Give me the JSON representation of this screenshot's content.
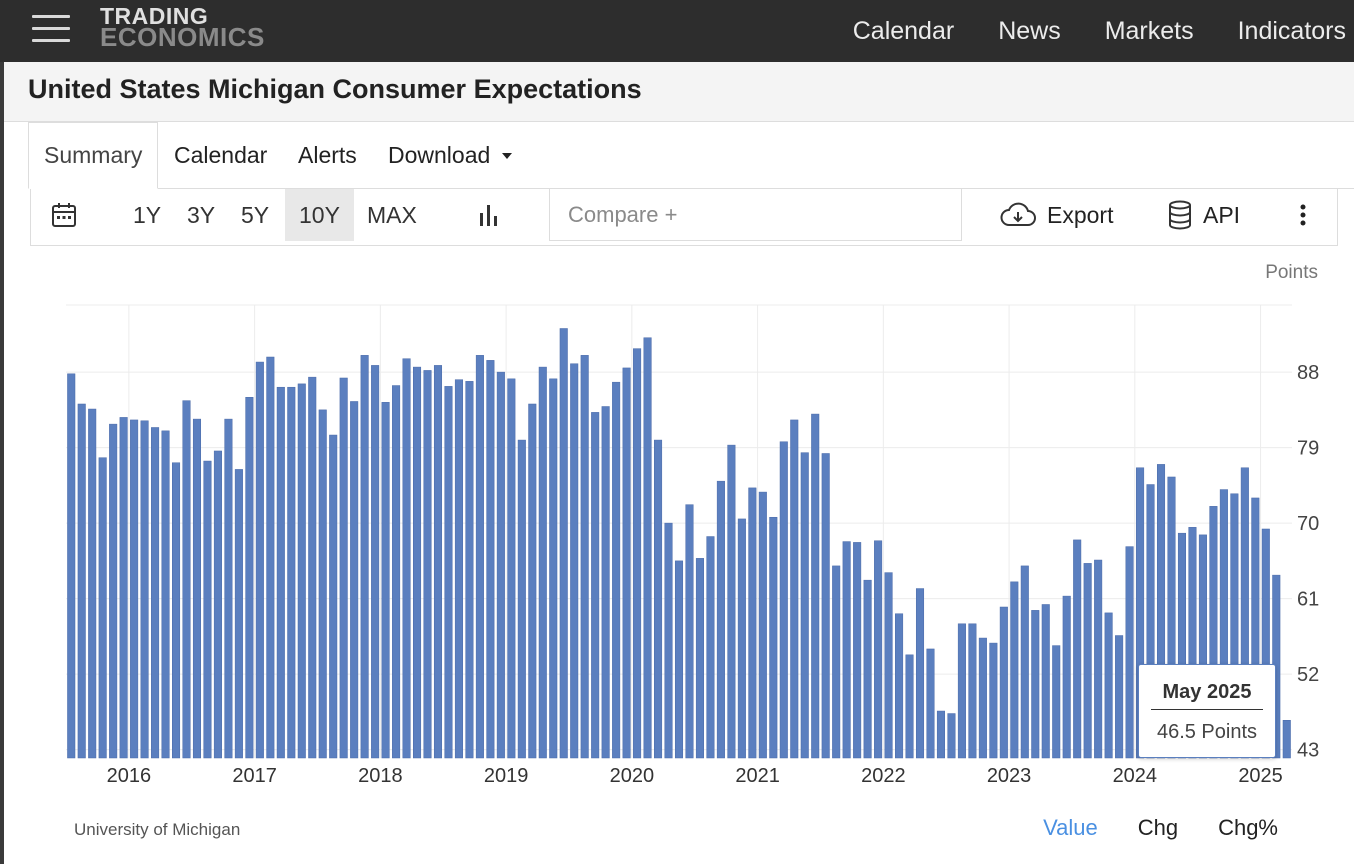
{
  "brand": {
    "line1": "TRADING",
    "line2": "ECONOMICS"
  },
  "nav": {
    "items": [
      "Calendar",
      "News",
      "Markets",
      "Indicators"
    ]
  },
  "page": {
    "title": "United States Michigan Consumer Expectations"
  },
  "tabs": {
    "summary": "Summary",
    "calendar": "Calendar",
    "alerts": "Alerts",
    "download": "Download"
  },
  "toolbar": {
    "ranges": [
      "1Y",
      "3Y",
      "5Y",
      "10Y",
      "MAX"
    ],
    "selected_range": "10Y",
    "compare_placeholder": "Compare +",
    "export_label": "Export",
    "api_label": "API"
  },
  "tooltip": {
    "period": "May 2025",
    "value_text": "46.5 Points"
  },
  "footer": {
    "source": "University of Michigan",
    "modes": [
      "Value",
      "Chg",
      "Chg%"
    ],
    "active_mode": "Value"
  },
  "colors": {
    "bar": "#5b7fbf",
    "bar_edge": "#4a6aa8",
    "header_bg": "#2d2d2d",
    "accent": "#4a90e2"
  },
  "chart_data": {
    "type": "bar",
    "ylabel": "Points",
    "ylim": [
      42,
      96
    ],
    "yticks": [
      43,
      52,
      61,
      70,
      79,
      88
    ],
    "xticks": [
      "2016",
      "2017",
      "2018",
      "2019",
      "2020",
      "2021",
      "2022",
      "2023",
      "2024",
      "2025"
    ],
    "x_start": "2015-07",
    "x_end": "2025-05",
    "grid": true,
    "series": [
      {
        "values": [
          87.8,
          84.2,
          83.6,
          77.8,
          81.8,
          82.6,
          82.3,
          82.2,
          81.4,
          81.0,
          77.2,
          84.6,
          82.4,
          77.4,
          78.6,
          82.4,
          76.4,
          85.0,
          89.2,
          89.8,
          86.2,
          86.2,
          86.6,
          87.4,
          83.5,
          80.5,
          87.3,
          84.5,
          90.0,
          88.8,
          84.4,
          86.4,
          89.6,
          88.6,
          88.2,
          88.8,
          86.3,
          87.1,
          86.9,
          90.0,
          89.4,
          88.0,
          87.2,
          79.9,
          84.2,
          88.6,
          87.2,
          93.2,
          89.0,
          90.0,
          83.2,
          83.9,
          86.8,
          88.5,
          90.8,
          92.1,
          79.9,
          70.0,
          65.5,
          72.2,
          65.8,
          68.4,
          75.0,
          79.3,
          70.5,
          74.2,
          73.7,
          70.7,
          79.7,
          82.3,
          78.4,
          83.0,
          78.3,
          64.9,
          67.8,
          67.7,
          63.2,
          67.9,
          64.1,
          59.2,
          54.3,
          62.2,
          55.0,
          47.6,
          47.3,
          58.0,
          58.0,
          56.3,
          55.7,
          60.0,
          63.0,
          64.9,
          59.6,
          60.3,
          55.4,
          61.3,
          68.0,
          65.2,
          65.6,
          59.3,
          56.6,
          67.2,
          76.6,
          74.6,
          77.0,
          75.5,
          68.8,
          69.5,
          68.6,
          72.0,
          74.0,
          73.5,
          76.6,
          73.0,
          69.3,
          63.8,
          46.5
        ]
      }
    ]
  }
}
